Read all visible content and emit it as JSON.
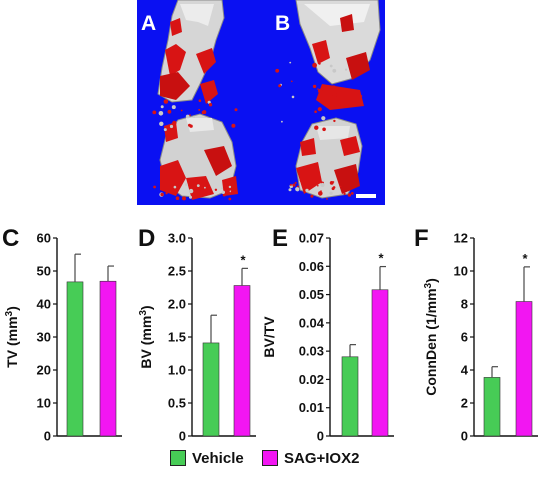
{
  "image_panels": [
    {
      "letter": "A"
    },
    {
      "letter": "B"
    }
  ],
  "colors": {
    "micro_ct_background": "#0a10f2",
    "bone": "#d8d8d8",
    "vessels": "#d81414",
    "vehicle": "#47cc56",
    "treatment": "#f216f2",
    "errorbar": "#4a4a4a"
  },
  "legend": [
    {
      "label": "Vehicle",
      "color": "#47cc56"
    },
    {
      "label": "SAG+IOX2",
      "color": "#f216f2"
    }
  ],
  "chart_data": [
    {
      "panel": "C",
      "type": "bar",
      "ylabel_parts": [
        "TV (mm",
        "3",
        ")"
      ],
      "ylim": [
        0,
        60
      ],
      "ticks": [
        0,
        10,
        20,
        30,
        40,
        50,
        60
      ],
      "tick_labels": [
        "0",
        "10",
        "20",
        "30",
        "40",
        "50",
        "60"
      ],
      "categories": [
        "Vehicle",
        "SAG+IOX2"
      ],
      "values": [
        46.7,
        46.9
      ],
      "errors": [
        8.4,
        4.6
      ],
      "significance": [
        "",
        ""
      ]
    },
    {
      "panel": "D",
      "type": "bar",
      "ylabel_parts": [
        "BV (mm",
        "3",
        ")"
      ],
      "ylim": [
        0,
        3.0
      ],
      "ticks": [
        0,
        0.5,
        1.0,
        1.5,
        2.0,
        2.5,
        3.0
      ],
      "tick_labels": [
        "0",
        "0.5",
        "1.0",
        "1.5",
        "2.0",
        "2.5",
        "3.0"
      ],
      "categories": [
        "Vehicle",
        "SAG+IOX2"
      ],
      "values": [
        1.41,
        2.28
      ],
      "errors": [
        0.42,
        0.26
      ],
      "significance": [
        "",
        "*"
      ]
    },
    {
      "panel": "E",
      "type": "bar",
      "ylabel_parts": [
        "BV/TV",
        "",
        ""
      ],
      "ylim": [
        0,
        0.07
      ],
      "ticks": [
        0,
        0.01,
        0.02,
        0.03,
        0.04,
        0.05,
        0.06,
        0.07
      ],
      "tick_labels": [
        "0",
        "0.01",
        "0.02",
        "0.03",
        "0.04",
        "0.05",
        "0.06",
        "0.07"
      ],
      "categories": [
        "Vehicle",
        "SAG+IOX2"
      ],
      "values": [
        0.028,
        0.0517
      ],
      "errors": [
        0.0043,
        0.0082
      ],
      "significance": [
        "",
        "*"
      ]
    },
    {
      "panel": "F",
      "type": "bar",
      "ylabel_parts": [
        "ConnDen (1/mm",
        "3",
        ")"
      ],
      "ylim": [
        0,
        12
      ],
      "ticks": [
        0,
        2,
        4,
        6,
        8,
        10,
        12
      ],
      "tick_labels": [
        "0",
        "2",
        "4",
        "6",
        "8",
        "10",
        "12"
      ],
      "categories": [
        "Vehicle",
        "SAG+IOX2"
      ],
      "values": [
        3.55,
        8.15
      ],
      "errors": [
        0.65,
        2.1
      ],
      "significance": [
        "",
        "*"
      ]
    }
  ]
}
